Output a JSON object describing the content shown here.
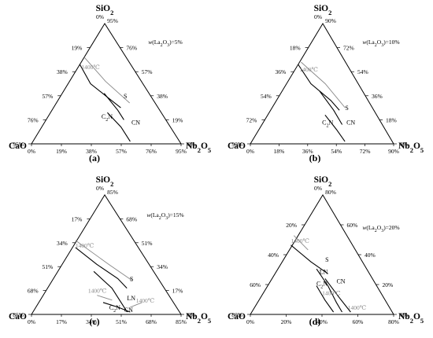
{
  "panels": [
    {
      "label": "(a)",
      "annotation": {
        "prefix": "w",
        "inner": "(La",
        "sub": "2",
        "suffix": "O",
        "sub2": "3",
        "close": ")=5%"
      },
      "top_tick": "95%",
      "left_ticks": [
        "19%",
        "38%",
        "57%",
        "76%",
        "95%"
      ],
      "right_ticks": [
        "76%",
        "57%",
        "38%",
        "19%",
        "0%"
      ],
      "bottom_ticks": [
        "0%",
        "19%",
        "38%",
        "57%",
        "76%",
        "95%"
      ],
      "top_zero": "0%",
      "isotherms": [
        "1400℃"
      ],
      "phases": [
        "S",
        "CN",
        "C2N"
      ]
    },
    {
      "label": "(b)",
      "annotation": {
        "prefix": "w",
        "inner": "(La",
        "sub": "2",
        "suffix": "O",
        "sub2": "3",
        "close": ")=10%"
      },
      "top_tick": "90%",
      "left_ticks": [
        "18%",
        "36%",
        "54%",
        "72%",
        "90%"
      ],
      "right_ticks": [
        "72%",
        "54%",
        "36%",
        "18%",
        "0%"
      ],
      "bottom_ticks": [
        "0%",
        "18%",
        "36%",
        "54%",
        "72%",
        "90%"
      ],
      "top_zero": "0%",
      "isotherms": [
        "1400℃"
      ],
      "phases": [
        "S",
        "CN",
        "C2N"
      ]
    },
    {
      "label": "(c)",
      "annotation": {
        "prefix": "w",
        "inner": "(La",
        "sub": "2",
        "suffix": "O",
        "sub2": "3",
        "close": ")=15%"
      },
      "top_tick": "85%",
      "left_ticks": [
        "17%",
        "34%",
        "51%",
        "68%",
        "85%"
      ],
      "right_ticks": [
        "68%",
        "51%",
        "34%",
        "17%",
        "0%"
      ],
      "bottom_ticks": [
        "0%",
        "17%",
        "34%",
        "51%",
        "68%",
        "85%"
      ],
      "top_zero": "0%",
      "isotherms": [
        "1400℃",
        "1400℃",
        "1400℃"
      ],
      "phases": [
        "S",
        "LN",
        "CN",
        "C2N"
      ]
    },
    {
      "label": "(d)",
      "annotation": {
        "prefix": "w",
        "inner": "(La",
        "sub": "2",
        "suffix": "O",
        "sub2": "3",
        "close": ")=20%"
      },
      "top_tick": "80%",
      "left_ticks": [
        "20%",
        "40%",
        "60%",
        "80%"
      ],
      "right_ticks": [
        "60%",
        "40%",
        "20%",
        "0%"
      ],
      "bottom_ticks": [
        "0%",
        "20%",
        "40%",
        "60%",
        "80%"
      ],
      "top_zero": "0%",
      "isotherms": [
        "1400℃",
        "1400℃",
        "1400℃"
      ],
      "phases": [
        "S",
        "LN",
        "CN",
        "C2N"
      ]
    }
  ],
  "vertices": {
    "top": "SiO",
    "top_sub": "2",
    "left": "CaO",
    "right": "Nb",
    "right_sub": "2",
    "right_o": "O",
    "right_sub2": "5"
  },
  "colors": {
    "boundary": "#000000",
    "isotherm": "#888888"
  }
}
